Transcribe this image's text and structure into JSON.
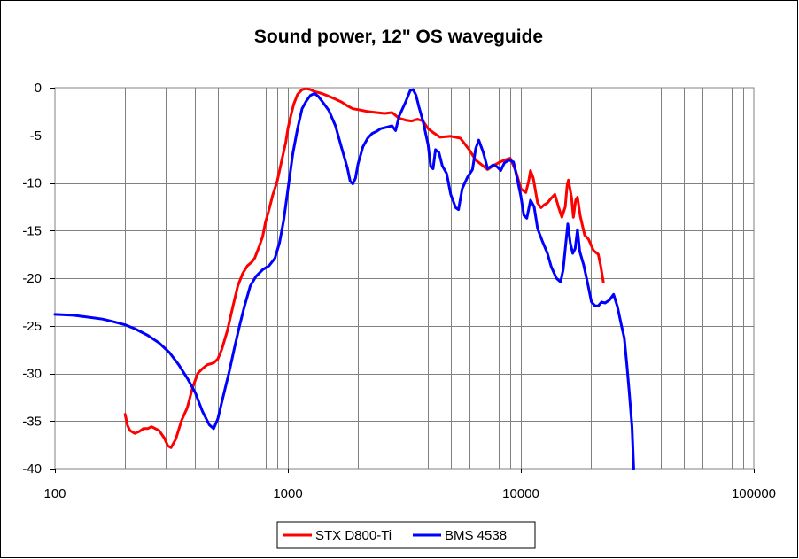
{
  "chart_data": {
    "type": "line",
    "title": "Sound power, 12\" OS waveguide",
    "xlabel": "",
    "ylabel": "",
    "xscale": "log",
    "xlim": [
      100,
      100000
    ],
    "ylim": [
      -40,
      0
    ],
    "x_ticks": [
      100,
      1000,
      10000,
      100000
    ],
    "x_tick_labels": [
      "100",
      "1000",
      "10000",
      "100000"
    ],
    "y_ticks": [
      0,
      -5,
      -10,
      -15,
      -20,
      -25,
      -30,
      -35,
      -40
    ],
    "y_tick_labels": [
      "0",
      "-5",
      "-10",
      "-15",
      "-20",
      "-25",
      "-30",
      "-35",
      "-40"
    ],
    "grid": true,
    "legend_position": "bottom-center",
    "series": [
      {
        "name": "STX D800-Ti",
        "color": "#ff0000",
        "points": [
          [
            200,
            -34.3
          ],
          [
            205,
            -35.5
          ],
          [
            210,
            -36
          ],
          [
            220,
            -36.3
          ],
          [
            230,
            -36.1
          ],
          [
            240,
            -35.8
          ],
          [
            250,
            -35.8
          ],
          [
            260,
            -35.6
          ],
          [
            280,
            -36
          ],
          [
            295,
            -36.8
          ],
          [
            305,
            -37.6
          ],
          [
            315,
            -37.8
          ],
          [
            330,
            -36.9
          ],
          [
            350,
            -34.9
          ],
          [
            370,
            -33.6
          ],
          [
            390,
            -31.5
          ],
          [
            410,
            -30
          ],
          [
            430,
            -29.5
          ],
          [
            450,
            -29.1
          ],
          [
            480,
            -28.9
          ],
          [
            500,
            -28.5
          ],
          [
            520,
            -27.5
          ],
          [
            550,
            -25.5
          ],
          [
            580,
            -23
          ],
          [
            610,
            -20.8
          ],
          [
            640,
            -19.5
          ],
          [
            670,
            -18.7
          ],
          [
            700,
            -18.3
          ],
          [
            720,
            -17.9
          ],
          [
            750,
            -16.8
          ],
          [
            780,
            -15.6
          ],
          [
            800,
            -14.2
          ],
          [
            830,
            -12.8
          ],
          [
            860,
            -11.3
          ],
          [
            900,
            -9.8
          ],
          [
            940,
            -7.7
          ],
          [
            980,
            -5.7
          ],
          [
            1000,
            -4.3
          ],
          [
            1030,
            -2.9
          ],
          [
            1060,
            -1.7
          ],
          [
            1100,
            -0.7
          ],
          [
            1150,
            -0.2
          ],
          [
            1200,
            -0.1
          ],
          [
            1250,
            -0.2
          ],
          [
            1300,
            -0.4
          ],
          [
            1400,
            -0.6
          ],
          [
            1500,
            -0.9
          ],
          [
            1600,
            -1.2
          ],
          [
            1700,
            -1.5
          ],
          [
            1800,
            -1.9
          ],
          [
            1900,
            -2.2
          ],
          [
            2000,
            -2.3
          ],
          [
            2200,
            -2.5
          ],
          [
            2400,
            -2.6
          ],
          [
            2600,
            -2.7
          ],
          [
            2800,
            -2.6
          ],
          [
            3000,
            -3.2
          ],
          [
            3200,
            -3.4
          ],
          [
            3400,
            -3.5
          ],
          [
            3600,
            -3.3
          ],
          [
            3800,
            -3.5
          ],
          [
            4000,
            -4.3
          ],
          [
            4200,
            -4.7
          ],
          [
            4500,
            -5.2
          ],
          [
            5000,
            -5.1
          ],
          [
            5500,
            -5.3
          ],
          [
            6000,
            -6.5
          ],
          [
            6400,
            -7.6
          ],
          [
            6800,
            -8.1
          ],
          [
            7200,
            -8.6
          ],
          [
            7600,
            -8.2
          ],
          [
            8000,
            -7.9
          ],
          [
            8500,
            -7.6
          ],
          [
            9000,
            -7.4
          ],
          [
            9500,
            -8.7
          ],
          [
            10000,
            -10.6
          ],
          [
            10500,
            -11
          ],
          [
            10800,
            -9.8
          ],
          [
            11000,
            -8.7
          ],
          [
            11300,
            -9.5
          ],
          [
            11800,
            -12.1
          ],
          [
            12200,
            -12.6
          ],
          [
            12600,
            -12.3
          ],
          [
            13000,
            -12.1
          ],
          [
            13500,
            -11.6
          ],
          [
            14000,
            -11.2
          ],
          [
            14500,
            -12.5
          ],
          [
            15000,
            -13.6
          ],
          [
            15500,
            -12.5
          ],
          [
            15800,
            -10.3
          ],
          [
            16000,
            -9.7
          ],
          [
            16500,
            -11.5
          ],
          [
            16800,
            -13.6
          ],
          [
            17200,
            -11.8
          ],
          [
            17500,
            -11.5
          ],
          [
            18000,
            -13.5
          ],
          [
            18800,
            -15.5
          ],
          [
            19500,
            -15.9
          ],
          [
            20500,
            -17.1
          ],
          [
            21500,
            -17.5
          ],
          [
            22000,
            -18.7
          ],
          [
            22600,
            -20.4
          ]
        ]
      },
      {
        "name": "BMS 4538",
        "color": "#0000ff",
        "points": [
          [
            100,
            -23.8
          ],
          [
            120,
            -23.9
          ],
          [
            140,
            -24.1
          ],
          [
            160,
            -24.3
          ],
          [
            180,
            -24.6
          ],
          [
            200,
            -24.9
          ],
          [
            220,
            -25.3
          ],
          [
            250,
            -26
          ],
          [
            280,
            -26.8
          ],
          [
            310,
            -27.8
          ],
          [
            340,
            -29.1
          ],
          [
            370,
            -30.5
          ],
          [
            400,
            -32
          ],
          [
            430,
            -34
          ],
          [
            460,
            -35.4
          ],
          [
            480,
            -35.8
          ],
          [
            500,
            -34.8
          ],
          [
            530,
            -32.2
          ],
          [
            560,
            -29.8
          ],
          [
            590,
            -27.3
          ],
          [
            620,
            -25
          ],
          [
            650,
            -23
          ],
          [
            690,
            -20.8
          ],
          [
            730,
            -19.8
          ],
          [
            780,
            -19.1
          ],
          [
            830,
            -18.7
          ],
          [
            880,
            -17.9
          ],
          [
            920,
            -16.3
          ],
          [
            960,
            -13.9
          ],
          [
            1000,
            -10.7
          ],
          [
            1050,
            -6.9
          ],
          [
            1100,
            -4.3
          ],
          [
            1150,
            -2.2
          ],
          [
            1200,
            -1.4
          ],
          [
            1250,
            -0.8
          ],
          [
            1300,
            -0.6
          ],
          [
            1350,
            -0.9
          ],
          [
            1400,
            -1.4
          ],
          [
            1500,
            -2.4
          ],
          [
            1600,
            -4
          ],
          [
            1700,
            -6.3
          ],
          [
            1800,
            -8.4
          ],
          [
            1850,
            -9.8
          ],
          [
            1900,
            -10.1
          ],
          [
            1950,
            -9.5
          ],
          [
            2000,
            -8
          ],
          [
            2100,
            -6.2
          ],
          [
            2200,
            -5.3
          ],
          [
            2300,
            -4.8
          ],
          [
            2400,
            -4.6
          ],
          [
            2500,
            -4.3
          ],
          [
            2600,
            -4.2
          ],
          [
            2800,
            -4
          ],
          [
            2900,
            -4.5
          ],
          [
            3000,
            -3
          ],
          [
            3200,
            -1.5
          ],
          [
            3350,
            -0.3
          ],
          [
            3450,
            -0.2
          ],
          [
            3550,
            -0.8
          ],
          [
            3650,
            -2
          ],
          [
            3800,
            -3.5
          ],
          [
            4000,
            -6
          ],
          [
            4100,
            -8.3
          ],
          [
            4200,
            -8.5
          ],
          [
            4300,
            -6.5
          ],
          [
            4450,
            -6.8
          ],
          [
            4600,
            -8.2
          ],
          [
            4800,
            -9
          ],
          [
            5000,
            -11.2
          ],
          [
            5250,
            -12.6
          ],
          [
            5400,
            -12.8
          ],
          [
            5600,
            -10.6
          ],
          [
            5900,
            -9.4
          ],
          [
            6200,
            -8.6
          ],
          [
            6400,
            -6.4
          ],
          [
            6600,
            -5.5
          ],
          [
            6900,
            -6.8
          ],
          [
            7200,
            -8.5
          ],
          [
            7600,
            -8.1
          ],
          [
            7900,
            -8.3
          ],
          [
            8200,
            -8.7
          ],
          [
            8500,
            -7.9
          ],
          [
            8900,
            -7.6
          ],
          [
            9300,
            -7.8
          ],
          [
            9600,
            -9.3
          ],
          [
            10000,
            -11.4
          ],
          [
            10300,
            -13.4
          ],
          [
            10600,
            -13.7
          ],
          [
            11000,
            -11.8
          ],
          [
            11400,
            -12.5
          ],
          [
            11800,
            -14.8
          ],
          [
            12400,
            -16.2
          ],
          [
            13000,
            -17.4
          ],
          [
            13500,
            -18.8
          ],
          [
            14200,
            -20
          ],
          [
            14800,
            -20.4
          ],
          [
            15200,
            -19.1
          ],
          [
            15600,
            -16.3
          ],
          [
            15900,
            -14.3
          ],
          [
            16300,
            -16.3
          ],
          [
            16700,
            -17.4
          ],
          [
            17100,
            -16.9
          ],
          [
            17500,
            -14.9
          ],
          [
            17900,
            -17.2
          ],
          [
            18600,
            -18.6
          ],
          [
            19300,
            -20.4
          ],
          [
            20100,
            -22.5
          ],
          [
            20800,
            -22.9
          ],
          [
            21500,
            -22.9
          ],
          [
            22200,
            -22.5
          ],
          [
            23000,
            -22.6
          ],
          [
            24000,
            -22.3
          ],
          [
            25000,
            -21.7
          ],
          [
            26000,
            -23
          ],
          [
            27000,
            -24.9
          ],
          [
            27800,
            -26.3
          ],
          [
            28500,
            -29
          ],
          [
            29200,
            -32
          ],
          [
            30000,
            -35.6
          ],
          [
            30500,
            -40
          ]
        ]
      }
    ]
  }
}
